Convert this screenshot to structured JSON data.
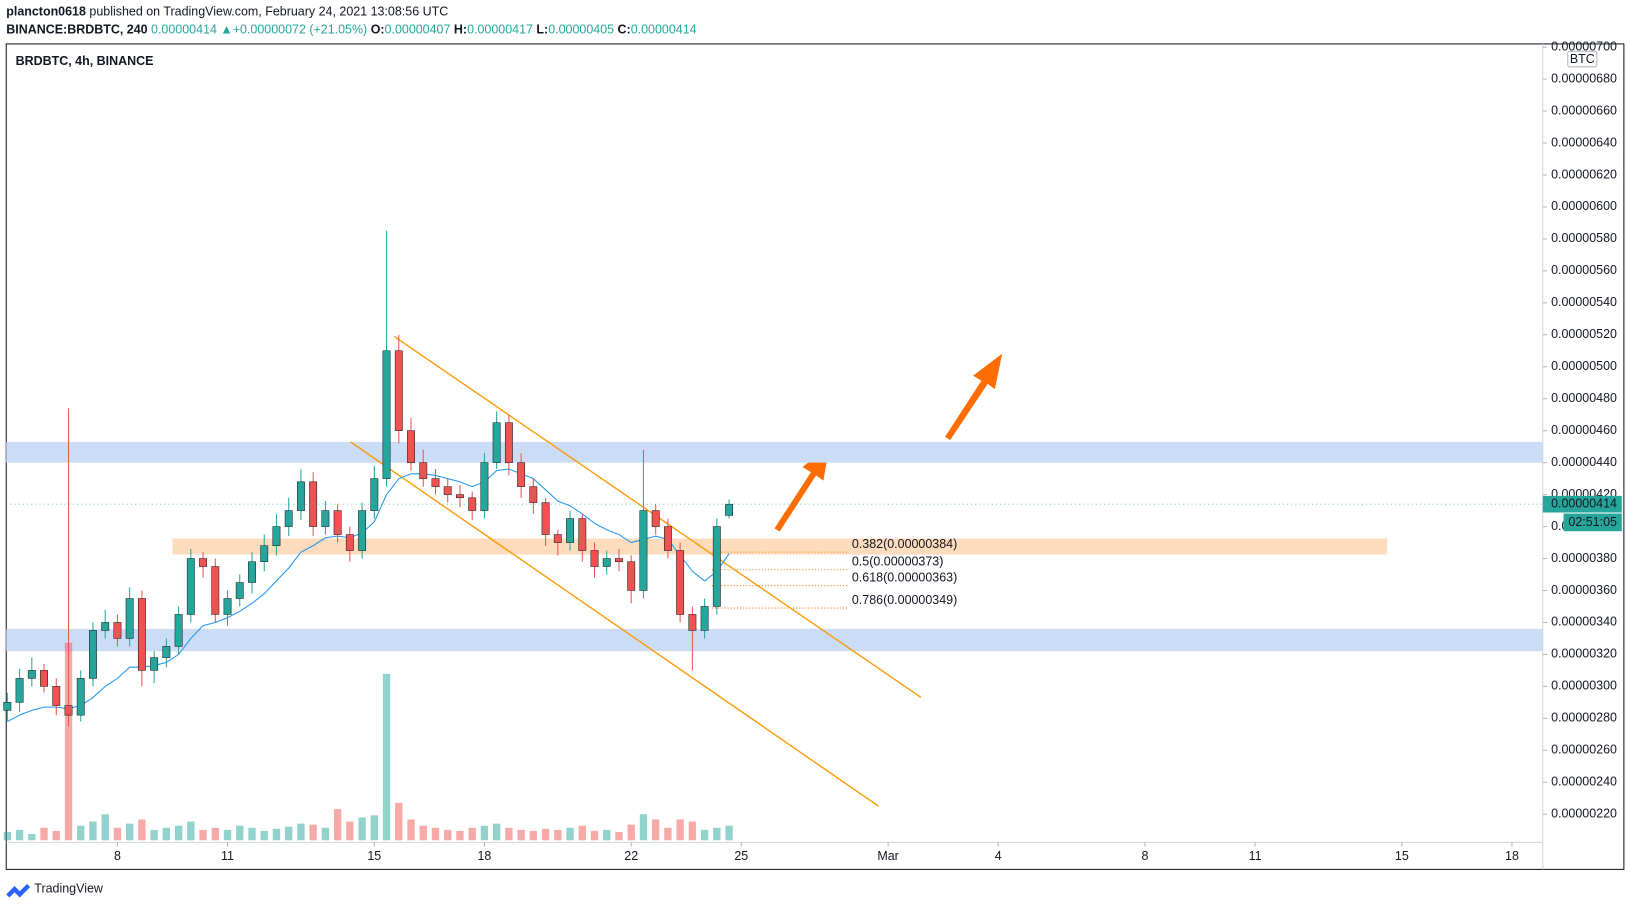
{
  "header": {
    "publisher": "plancton0618",
    "published": "published on TradingView.com, February 24, 2021 13:08:56 UTC",
    "symbol": "BINANCE:BRDBTC, 240",
    "last": "0.00000414",
    "arrow": "▲",
    "change": "+0.00000072 (+21.05%)",
    "o_label": "O:",
    "o": "0.00000407",
    "h_label": "H:",
    "h": "0.00000417",
    "l_label": "L:",
    "l": "0.00000405",
    "c_label": "C:",
    "c": "0.00000414"
  },
  "chart_data": {
    "type": "candlestick",
    "title": "BRDBTC, 4h, BINANCE",
    "unit": "BTC",
    "up_color": "#26a69a",
    "down_color": "#ef5350",
    "ema_color": "#2196f3",
    "x": [
      5,
      5.333,
      5.667,
      6,
      6.333,
      6.667,
      7,
      7.333,
      7.667,
      8,
      8.333,
      8.667,
      9,
      9.333,
      9.667,
      10,
      10.333,
      10.667,
      11,
      11.333,
      11.667,
      12,
      12.333,
      12.667,
      13,
      13.333,
      13.667,
      14,
      14.333,
      14.667,
      15,
      15.333,
      15.667,
      16,
      16.333,
      16.667,
      17,
      17.333,
      17.667,
      18,
      18.333,
      18.667,
      19,
      19.333,
      19.667,
      20,
      20.333,
      20.667,
      21,
      21.333,
      21.667,
      22,
      22.333,
      22.667,
      23,
      23.333,
      23.667,
      24,
      24.333,
      24.667
    ],
    "open": [
      2.85e-06,
      2.9e-06,
      3.05e-06,
      3.1e-06,
      3e-06,
      2.88e-06,
      2.82e-06,
      3.05e-06,
      3.35e-06,
      3.4e-06,
      3.3e-06,
      3.55e-06,
      3.1e-06,
      3.18e-06,
      3.25e-06,
      3.45e-06,
      3.8e-06,
      3.75e-06,
      3.45e-06,
      3.55e-06,
      3.65e-06,
      3.78e-06,
      3.88e-06,
      4e-06,
      4.1e-06,
      4.28e-06,
      4e-06,
      4.1e-06,
      3.95e-06,
      3.85e-06,
      4.1e-06,
      4.3e-06,
      5.1e-06,
      4.6e-06,
      4.4e-06,
      4.3e-06,
      4.25e-06,
      4.2e-06,
      4.18e-06,
      4.1e-06,
      4.4e-06,
      4.65e-06,
      4.4e-06,
      4.25e-06,
      4.15e-06,
      3.95e-06,
      3.9e-06,
      4.05e-06,
      3.85e-06,
      3.75e-06,
      3.8e-06,
      3.78e-06,
      3.6e-06,
      4.1e-06,
      4e-06,
      3.85e-06,
      3.45e-06,
      3.35e-06,
      3.5e-06,
      4.07e-06
    ],
    "high": [
      2.96e-06,
      3.11e-06,
      3.18e-06,
      3.14e-06,
      3.05e-06,
      4.74e-06,
      3.1e-06,
      3.4e-06,
      3.48e-06,
      3.45e-06,
      3.62e-06,
      3.6e-06,
      3.22e-06,
      3.3e-06,
      3.5e-06,
      3.86e-06,
      3.84e-06,
      3.8e-06,
      3.6e-06,
      3.7e-06,
      3.84e-06,
      3.95e-06,
      4.08e-06,
      4.18e-06,
      4.36e-06,
      4.34e-06,
      4.16e-06,
      4.14e-06,
      4e-06,
      4.15e-06,
      4.38e-06,
      5.85e-06,
      5.2e-06,
      4.68e-06,
      4.48e-06,
      4.36e-06,
      4.3e-06,
      4.26e-06,
      4.22e-06,
      4.46e-06,
      4.72e-06,
      4.7e-06,
      4.46e-06,
      4.3e-06,
      4.18e-06,
      3.98e-06,
      4.1e-06,
      4.08e-06,
      3.9e-06,
      3.85e-06,
      3.86e-06,
      3.82e-06,
      4.48e-06,
      4.14e-06,
      4.05e-06,
      3.9e-06,
      3.5e-06,
      3.55e-06,
      4.05e-06,
      4.17e-06
    ],
    "low": [
      2.78e-06,
      2.84e-06,
      3e-06,
      2.96e-06,
      2.82e-06,
      2.75e-06,
      2.78e-06,
      3e-06,
      3.3e-06,
      3.25e-06,
      3.25e-06,
      3e-06,
      3.02e-06,
      3.12e-06,
      3.2e-06,
      3.4e-06,
      3.68e-06,
      3.4e-06,
      3.38e-06,
      3.5e-06,
      3.58e-06,
      3.72e-06,
      3.82e-06,
      3.94e-06,
      4.04e-06,
      3.94e-06,
      3.95e-06,
      3.9e-06,
      3.78e-06,
      3.8e-06,
      4.05e-06,
      4.25e-06,
      4.52e-06,
      4.35e-06,
      4.25e-06,
      4.2e-06,
      4.15e-06,
      4.12e-06,
      4.04e-06,
      4.05e-06,
      4.36e-06,
      4.32e-06,
      4.18e-06,
      4.08e-06,
      3.88e-06,
      3.82e-06,
      3.85e-06,
      3.78e-06,
      3.68e-06,
      3.7e-06,
      3.72e-06,
      3.52e-06,
      3.55e-06,
      3.95e-06,
      3.8e-06,
      3.4e-06,
      3.1e-06,
      3.3e-06,
      3.45e-06,
      4.05e-06
    ],
    "close": [
      2.9e-06,
      3.05e-06,
      3.1e-06,
      3e-06,
      2.88e-06,
      2.82e-06,
      3.05e-06,
      3.35e-06,
      3.4e-06,
      3.3e-06,
      3.55e-06,
      3.1e-06,
      3.18e-06,
      3.25e-06,
      3.45e-06,
      3.8e-06,
      3.75e-06,
      3.45e-06,
      3.55e-06,
      3.65e-06,
      3.78e-06,
      3.88e-06,
      4e-06,
      4.1e-06,
      4.28e-06,
      4e-06,
      4.1e-06,
      3.95e-06,
      3.85e-06,
      4.1e-06,
      4.3e-06,
      5.1e-06,
      4.6e-06,
      4.4e-06,
      4.3e-06,
      4.25e-06,
      4.2e-06,
      4.18e-06,
      4.1e-06,
      4.4e-06,
      4.65e-06,
      4.4e-06,
      4.25e-06,
      4.15e-06,
      3.95e-06,
      3.9e-06,
      4.05e-06,
      3.85e-06,
      3.75e-06,
      3.8e-06,
      3.78e-06,
      3.6e-06,
      4.1e-06,
      4e-06,
      3.85e-06,
      3.45e-06,
      3.35e-06,
      3.5e-06,
      4e-06,
      4.14e-06
    ],
    "volume": [
      8,
      10,
      6,
      12,
      9,
      190,
      14,
      18,
      25,
      12,
      16,
      20,
      10,
      12,
      14,
      18,
      10,
      12,
      10,
      14,
      12,
      9,
      11,
      13,
      16,
      15,
      12,
      30,
      18,
      22,
      24,
      160,
      36,
      20,
      14,
      12,
      10,
      9,
      12,
      14,
      16,
      12,
      10,
      9,
      11,
      10,
      12,
      14,
      9,
      10,
      8,
      15,
      25,
      20,
      12,
      20,
      18,
      10,
      12,
      14
    ],
    "ema": [
      2.78e-06,
      2.82e-06,
      2.85e-06,
      2.87e-06,
      2.87e-06,
      2.86e-06,
      2.88e-06,
      2.93e-06,
      3e-06,
      3.05e-06,
      3.12e-06,
      3.12e-06,
      3.13e-06,
      3.15e-06,
      3.2e-06,
      3.3e-06,
      3.38e-06,
      3.4e-06,
      3.43e-06,
      3.47e-06,
      3.52e-06,
      3.58e-06,
      3.66e-06,
      3.74e-06,
      3.84e-06,
      3.88e-06,
      3.93e-06,
      3.94e-06,
      3.93e-06,
      3.96e-06,
      4.03e-06,
      4.2e-06,
      4.3e-06,
      4.33e-06,
      4.33e-06,
      4.32e-06,
      4.3e-06,
      4.28e-06,
      4.25e-06,
      4.28e-06,
      4.35e-06,
      4.36e-06,
      4.33e-06,
      4.3e-06,
      4.23e-06,
      4.16e-06,
      4.13e-06,
      4.08e-06,
      4.02e-06,
      3.98e-06,
      3.95e-06,
      3.9e-06,
      3.92e-06,
      3.94e-06,
      3.92e-06,
      3.82e-06,
      3.72e-06,
      3.66e-06,
      3.72e-06,
      3.83e-06
    ],
    "xlim": [
      4.97,
      46.84
    ],
    "ylim": [
      2.024e-06,
      7.02e-06
    ],
    "xticks": [
      8,
      11,
      15,
      18,
      22,
      25,
      {
        "value": 29,
        "label": "Mar"
      },
      {
        "value": 32,
        "label": "4"
      },
      {
        "value": 36,
        "label": "8"
      },
      {
        "value": 39,
        "label": "11"
      },
      {
        "value": 43,
        "label": "15"
      },
      {
        "value": 46,
        "label": "18"
      }
    ],
    "yticks": [
      {
        "value": 2.2e-06,
        "label": "0.00000220"
      },
      {
        "value": 2.4e-06,
        "label": "0.00000240"
      },
      {
        "value": 2.6e-06,
        "label": "0.00000260"
      },
      {
        "value": 2.8e-06,
        "label": "0.00000280"
      },
      {
        "value": 3e-06,
        "label": "0.00000300"
      },
      {
        "value": 3.2e-06,
        "label": "0.00000320"
      },
      {
        "value": 3.4e-06,
        "label": "0.00000340"
      },
      {
        "value": 3.6e-06,
        "label": "0.00000360"
      },
      {
        "value": 3.8e-06,
        "label": "0.00000380"
      },
      {
        "value": 4e-06,
        "label": "0.00000400"
      },
      {
        "value": 4.2e-06,
        "label": "0.00000420"
      },
      {
        "value": 4.4e-06,
        "label": "0.00000440"
      },
      {
        "value": 4.6e-06,
        "label": "0.00000460"
      },
      {
        "value": 4.8e-06,
        "label": "0.00000480"
      },
      {
        "value": 5e-06,
        "label": "0.00000500"
      },
      {
        "value": 5.2e-06,
        "label": "0.00000520"
      },
      {
        "value": 5.4e-06,
        "label": "0.00000540"
      },
      {
        "value": 5.6e-06,
        "label": "0.00000560"
      },
      {
        "value": 5.8e-06,
        "label": "0.00000580"
      },
      {
        "value": 6e-06,
        "label": "0.00000600"
      },
      {
        "value": 6.2e-06,
        "label": "0.00000620"
      },
      {
        "value": 6.4e-06,
        "label": "0.00000640"
      },
      {
        "value": 6.6e-06,
        "label": "0.00000660"
      },
      {
        "value": 6.8e-06,
        "label": "0.00000680"
      },
      {
        "value": 7e-06,
        "label": "0.00000700"
      }
    ],
    "zones": [
      {
        "from": 4.4e-06,
        "to": 4.53e-06,
        "x": [
          4.97,
          46.84
        ],
        "color": "#cbdcf7"
      },
      {
        "from": 3.22e-06,
        "to": 3.36e-06,
        "x": [
          4.97,
          46.84
        ],
        "color": "#cbdcf7"
      },
      {
        "from": 3.825e-06,
        "to": 3.925e-06,
        "x": [
          9.5,
          42.6
        ],
        "color": "#fcdcbc"
      }
    ],
    "channel_color": "#ff9800",
    "channel": [
      {
        "x": [
          15.54,
          29.9
        ],
        "y": [
          5.19e-06,
          2.93e-06
        ]
      },
      {
        "x": [
          14.35,
          28.74
        ],
        "y": [
          4.53e-06,
          2.25e-06
        ]
      }
    ],
    "fib_color": "#f57c00",
    "fib_x": [
      24.2,
      27.9
    ],
    "fib_levels": [
      {
        "value": 3.84e-06,
        "label": "0.382(0.00000384)"
      },
      {
        "value": 3.73e-06,
        "label": "0.5(0.00000373)"
      },
      {
        "value": 3.63e-06,
        "label": "0.618(0.00000363)"
      },
      {
        "value": 3.49e-06,
        "label": "0.786(0.00000349)"
      }
    ],
    "price_tag": {
      "value": 4.14e-06,
      "label": "0.00000414",
      "countdown": "02:51:05"
    }
  },
  "footer": {
    "brand": "TradingView"
  }
}
